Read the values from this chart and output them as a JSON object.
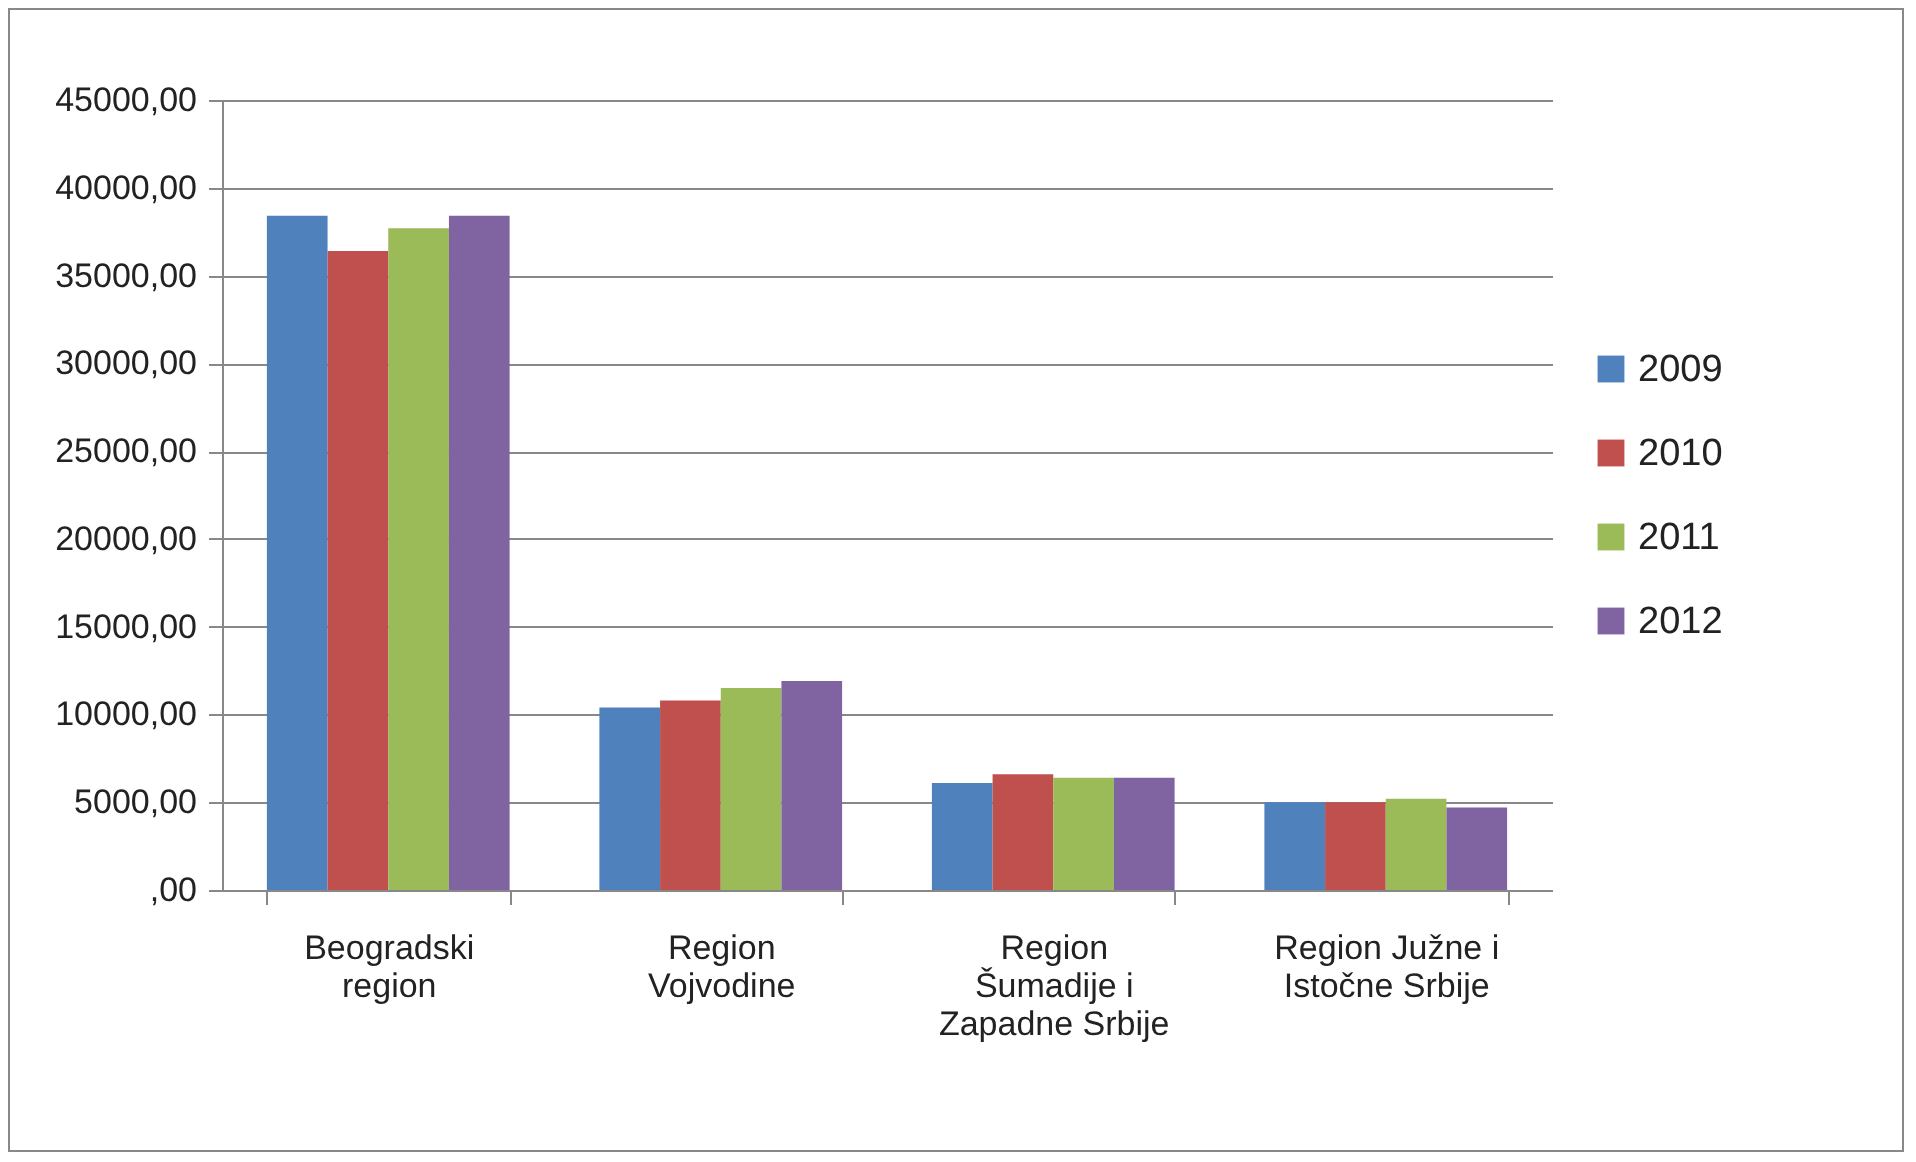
{
  "chart_data": {
    "type": "bar",
    "categories": [
      "Beogradski region",
      "Region Vojvodine",
      "Region Šumadije i Zapadne Srbije",
      "Region Južne i Istočne Srbije"
    ],
    "series": [
      {
        "name": "2009",
        "color": "#4f81bd",
        "values": [
          38400,
          10400,
          6100,
          5000
        ]
      },
      {
        "name": "2010",
        "color": "#c0504d",
        "values": [
          36400,
          10800,
          6600,
          5000
        ]
      },
      {
        "name": "2011",
        "color": "#9bbb59",
        "values": [
          37700,
          11500,
          6400,
          5200
        ]
      },
      {
        "name": "2012",
        "color": "#8064a2",
        "values": [
          38400,
          11900,
          6400,
          4700
        ]
      }
    ],
    "ylim": [
      0,
      45000
    ],
    "yticks": [
      {
        "value": 0,
        "label": ",00"
      },
      {
        "value": 5000,
        "label": "5000,00"
      },
      {
        "value": 10000,
        "label": "10000,00"
      },
      {
        "value": 15000,
        "label": "15000,00"
      },
      {
        "value": 20000,
        "label": "20000,00"
      },
      {
        "value": 25000,
        "label": "25000,00"
      },
      {
        "value": 30000,
        "label": "30000,00"
      },
      {
        "value": 35000,
        "label": "35000,00"
      },
      {
        "value": 40000,
        "label": "40000,00"
      },
      {
        "value": 45000,
        "label": "45000,00"
      }
    ],
    "grid": "y",
    "legend": "right"
  }
}
